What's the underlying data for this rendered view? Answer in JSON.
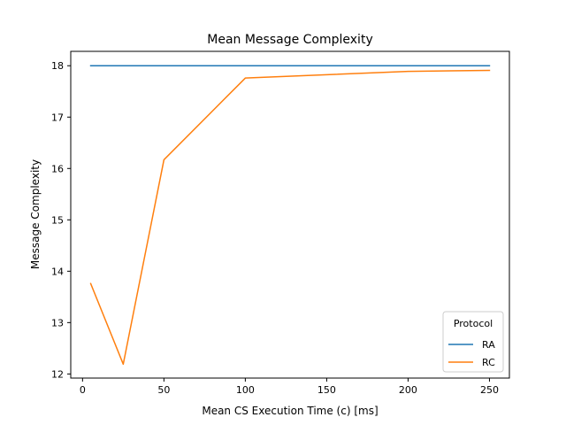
{
  "chart_data": {
    "type": "line",
    "title": "Mean Message Complexity",
    "xlabel": "Mean CS Execution Time (c) [ms]",
    "ylabel": "Message Complexity",
    "xlim": [
      -7.25,
      262.25
    ],
    "ylim": [
      11.92,
      18.28
    ],
    "xticks": [
      0,
      50,
      100,
      150,
      200,
      250
    ],
    "yticks": [
      12,
      13,
      14,
      15,
      16,
      17,
      18
    ],
    "grid": false,
    "legend": {
      "title": "Protocol",
      "position": "lower-right"
    },
    "series": [
      {
        "name": "RA",
        "color": "#1f77b4",
        "x": [
          5,
          25,
          50,
          100,
          200,
          250
        ],
        "y": [
          18.0,
          18.0,
          18.0,
          18.0,
          18.0,
          18.0
        ]
      },
      {
        "name": "RC",
        "color": "#ff7f0e",
        "x": [
          5,
          25,
          50,
          100,
          200,
          250
        ],
        "y": [
          13.76,
          12.19,
          16.17,
          17.76,
          17.89,
          17.91
        ]
      }
    ]
  }
}
